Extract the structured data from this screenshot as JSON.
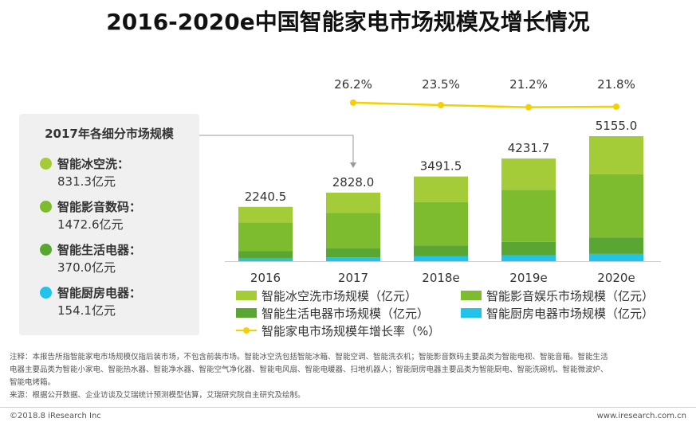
{
  "page": {
    "title": "2016-2020e中国智能家电市场规模及增长情况"
  },
  "side_panel": {
    "title": "2017年各细分市场规模",
    "segments": [
      {
        "label": "智能冰空洗：",
        "value": "831.3亿元",
        "color": "#a4cc38"
      },
      {
        "label": "智能影音数码：",
        "value": "1472.6亿元",
        "color": "#7cbc2e"
      },
      {
        "label": "智能生活电器：",
        "value": "370.0亿元",
        "color": "#5aa632"
      },
      {
        "label": "智能厨房电器：",
        "value": "154.1亿元",
        "color": "#22c3e8"
      }
    ]
  },
  "chart_data": {
    "type": "bar",
    "stacked": true,
    "title": "2016-2020e中国智能家电市场规模及增长情况",
    "categories": [
      "2016",
      "2017",
      "2018e",
      "2019e",
      "2020e"
    ],
    "totals": [
      2240.5,
      2828.0,
      3491.5,
      4231.7,
      5155.0
    ],
    "total_labels": [
      "2240.5",
      "2828.0",
      "3491.5",
      "4231.7",
      "5155.0"
    ],
    "series": [
      {
        "name": "智能厨房电器市场规模（亿元）",
        "color": "#22c3e8",
        "values": [
          110,
          154.1,
          200,
          245,
          300
        ]
      },
      {
        "name": "智能生活电器市场规模（亿元）",
        "color": "#5aa632",
        "values": [
          300,
          370.0,
          450,
          550,
          680
        ]
      },
      {
        "name": "智能影音娱乐市场规模（亿元）",
        "color": "#7cbc2e",
        "values": [
          1180,
          1472.6,
          1790,
          2150,
          2600
        ]
      },
      {
        "name": "智能冰空洗市场规模（亿元）",
        "color": "#a4cc38",
        "values": [
          650.5,
          831.3,
          1051.5,
          1286.7,
          1575
        ]
      }
    ],
    "growth": {
      "name": "智能家电市场规模年增长率（%）",
      "color": "#f5d000",
      "categories": [
        "2017",
        "2018e",
        "2019e",
        "2020e"
      ],
      "values": [
        26.2,
        23.5,
        21.2,
        21.8
      ],
      "labels": [
        "26.2%",
        "23.5%",
        "21.2%",
        "21.8%"
      ]
    },
    "legend": [
      {
        "name": "智能冰空洗市场规模（亿元）",
        "color": "#a4cc38",
        "kind": "bar"
      },
      {
        "name": "智能影音娱乐市场规模（亿元）",
        "color": "#7cbc2e",
        "kind": "bar"
      },
      {
        "name": "智能生活电器市场规模（亿元）",
        "color": "#5aa632",
        "kind": "bar"
      },
      {
        "name": "智能厨房电器市场规模（亿元）",
        "color": "#22c3e8",
        "kind": "bar"
      },
      {
        "name": "智能家电市场规模年增长率（%）",
        "color": "#f5d000",
        "kind": "line"
      }
    ],
    "annotation": {
      "from_panel_to": "2017"
    }
  },
  "notes": {
    "line1": "注释：本报告所指智能家电市场规模仅指后装市场，不包含前装市场。智能冰空洗包括智能冰箱、智能空调、智能洗衣机；智能影音数码主要品类为智能电视、智能音箱。智能生活",
    "line2": "电器主要品类为智能小家电、智能热水器、智能净水器、智能空气净化器、智能电风扇、智能电暖器、扫地机器人；智能厨房电器主要品类为智能厨电、智能洗碗机、智能微波炉、",
    "line3": "智能电烤箱。",
    "source": "来源：根据公开数据、企业访谈及艾瑞统计预测模型估算，艾瑞研究院自主研究及绘制。"
  },
  "footer": {
    "copyright": "©2018.8 iResearch Inc",
    "website": "www.iresearch.com.cn"
  }
}
